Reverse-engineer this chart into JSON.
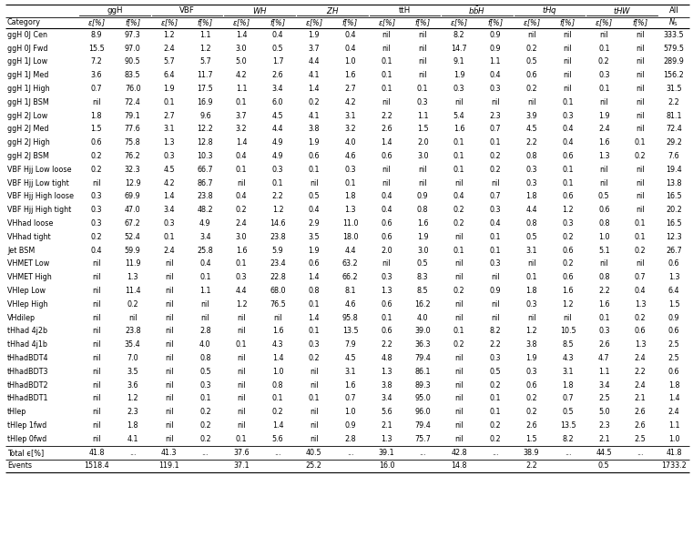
{
  "rows": [
    [
      "ggH 0J Cen",
      "8.9",
      "97.3",
      "1.2",
      "1.1",
      "1.4",
      "0.4",
      "1.9",
      "0.4",
      "nil",
      "nil",
      "8.2",
      "0.9",
      "nil",
      "nil",
      "nil",
      "nil",
      "333.5"
    ],
    [
      "ggH 0J Fwd",
      "15.5",
      "97.0",
      "2.4",
      "1.2",
      "3.0",
      "0.5",
      "3.7",
      "0.4",
      "nil",
      "nil",
      "14.7",
      "0.9",
      "0.2",
      "nil",
      "0.1",
      "nil",
      "579.5"
    ],
    [
      "ggH 1J Low",
      "7.2",
      "90.5",
      "5.7",
      "5.7",
      "5.0",
      "1.7",
      "4.4",
      "1.0",
      "0.1",
      "nil",
      "9.1",
      "1.1",
      "0.5",
      "nil",
      "0.2",
      "nil",
      "289.9"
    ],
    [
      "ggH 1J Med",
      "3.6",
      "83.5",
      "6.4",
      "11.7",
      "4.2",
      "2.6",
      "4.1",
      "1.6",
      "0.1",
      "nil",
      "1.9",
      "0.4",
      "0.6",
      "nil",
      "0.3",
      "nil",
      "156.2"
    ],
    [
      "ggH 1J High",
      "0.7",
      "76.0",
      "1.9",
      "17.5",
      "1.1",
      "3.4",
      "1.4",
      "2.7",
      "0.1",
      "0.1",
      "0.3",
      "0.3",
      "0.2",
      "nil",
      "0.1",
      "nil",
      "31.5"
    ],
    [
      "ggH 1J BSM",
      "nil",
      "72.4",
      "0.1",
      "16.9",
      "0.1",
      "6.0",
      "0.2",
      "4.2",
      "nil",
      "0.3",
      "nil",
      "nil",
      "nil",
      "0.1",
      "nil",
      "nil",
      "2.2"
    ],
    [
      "ggH 2J Low",
      "1.8",
      "79.1",
      "2.7",
      "9.6",
      "3.7",
      "4.5",
      "4.1",
      "3.1",
      "2.2",
      "1.1",
      "5.4",
      "2.3",
      "3.9",
      "0.3",
      "1.9",
      "nil",
      "81.1"
    ],
    [
      "ggH 2J Med",
      "1.5",
      "77.6",
      "3.1",
      "12.2",
      "3.2",
      "4.4",
      "3.8",
      "3.2",
      "2.6",
      "1.5",
      "1.6",
      "0.7",
      "4.5",
      "0.4",
      "2.4",
      "nil",
      "72.4"
    ],
    [
      "ggH 2J High",
      "0.6",
      "75.8",
      "1.3",
      "12.8",
      "1.4",
      "4.9",
      "1.9",
      "4.0",
      "1.4",
      "2.0",
      "0.1",
      "0.1",
      "2.2",
      "0.4",
      "1.6",
      "0.1",
      "29.2"
    ],
    [
      "ggH 2J BSM",
      "0.2",
      "76.2",
      "0.3",
      "10.3",
      "0.4",
      "4.9",
      "0.6",
      "4.6",
      "0.6",
      "3.0",
      "0.1",
      "0.2",
      "0.8",
      "0.6",
      "1.3",
      "0.2",
      "7.6"
    ],
    [
      "VBF Hjj Low loose",
      "0.2",
      "32.3",
      "4.5",
      "66.7",
      "0.1",
      "0.3",
      "0.1",
      "0.3",
      "nil",
      "nil",
      "0.1",
      "0.2",
      "0.3",
      "0.1",
      "nil",
      "nil",
      "19.4"
    ],
    [
      "VBF Hjj Low tight",
      "nil",
      "12.9",
      "4.2",
      "86.7",
      "nil",
      "0.1",
      "nil",
      "0.1",
      "nil",
      "nil",
      "nil",
      "nil",
      "0.3",
      "0.1",
      "nil",
      "nil",
      "13.8"
    ],
    [
      "VBF Hjj High loose",
      "0.3",
      "69.9",
      "1.4",
      "23.8",
      "0.4",
      "2.2",
      "0.5",
      "1.8",
      "0.4",
      "0.9",
      "0.4",
      "0.7",
      "1.8",
      "0.6",
      "0.5",
      "nil",
      "16.5"
    ],
    [
      "VBF Hjj High tight",
      "0.3",
      "47.0",
      "3.4",
      "48.2",
      "0.2",
      "1.2",
      "0.4",
      "1.3",
      "0.4",
      "0.8",
      "0.2",
      "0.3",
      "4.4",
      "1.2",
      "0.6",
      "nil",
      "20.2"
    ],
    [
      "VHhad loose",
      "0.3",
      "67.2",
      "0.3",
      "4.9",
      "2.4",
      "14.6",
      "2.9",
      "11.0",
      "0.6",
      "1.6",
      "0.2",
      "0.4",
      "0.8",
      "0.3",
      "0.8",
      "0.1",
      "16.5"
    ],
    [
      "VHhad tight",
      "0.2",
      "52.4",
      "0.1",
      "3.4",
      "3.0",
      "23.8",
      "3.5",
      "18.0",
      "0.6",
      "1.9",
      "nil",
      "0.1",
      "0.5",
      "0.2",
      "1.0",
      "0.1",
      "12.3"
    ],
    [
      "Jet BSM",
      "0.4",
      "59.9",
      "2.4",
      "25.8",
      "1.6",
      "5.9",
      "1.9",
      "4.4",
      "2.0",
      "3.0",
      "0.1",
      "0.1",
      "3.1",
      "0.6",
      "5.1",
      "0.2",
      "26.7"
    ],
    [
      "VHMET Low",
      "nil",
      "11.9",
      "nil",
      "0.4",
      "0.1",
      "23.4",
      "0.6",
      "63.2",
      "nil",
      "0.5",
      "nil",
      "0.3",
      "nil",
      "0.2",
      "nil",
      "nil",
      "0.6"
    ],
    [
      "VHMET High",
      "nil",
      "1.3",
      "nil",
      "0.1",
      "0.3",
      "22.8",
      "1.4",
      "66.2",
      "0.3",
      "8.3",
      "nil",
      "nil",
      "0.1",
      "0.6",
      "0.8",
      "0.7",
      "1.3"
    ],
    [
      "VHlep Low",
      "nil",
      "11.4",
      "nil",
      "1.1",
      "4.4",
      "68.0",
      "0.8",
      "8.1",
      "1.3",
      "8.5",
      "0.2",
      "0.9",
      "1.8",
      "1.6",
      "2.2",
      "0.4",
      "6.4"
    ],
    [
      "VHlep High",
      "nil",
      "0.2",
      "nil",
      "nil",
      "1.2",
      "76.5",
      "0.1",
      "4.6",
      "0.6",
      "16.2",
      "nil",
      "nil",
      "0.3",
      "1.2",
      "1.6",
      "1.3",
      "1.5"
    ],
    [
      "VHdilep",
      "nil",
      "nil",
      "nil",
      "nil",
      "nil",
      "nil",
      "1.4",
      "95.8",
      "0.1",
      "4.0",
      "nil",
      "nil",
      "nil",
      "nil",
      "0.1",
      "0.2",
      "0.9"
    ],
    [
      "tHhad 4j2b",
      "nil",
      "23.8",
      "nil",
      "2.8",
      "nil",
      "1.6",
      "0.1",
      "13.5",
      "0.6",
      "39.0",
      "0.1",
      "8.2",
      "1.2",
      "10.5",
      "0.3",
      "0.6",
      "0.6"
    ],
    [
      "tHhad 4j1b",
      "nil",
      "35.4",
      "nil",
      "4.0",
      "0.1",
      "4.3",
      "0.3",
      "7.9",
      "2.2",
      "36.3",
      "0.2",
      "2.2",
      "3.8",
      "8.5",
      "2.6",
      "1.3",
      "2.5"
    ],
    [
      "tHhadBDT4",
      "nil",
      "7.0",
      "nil",
      "0.8",
      "nil",
      "1.4",
      "0.2",
      "4.5",
      "4.8",
      "79.4",
      "nil",
      "0.3",
      "1.9",
      "4.3",
      "4.7",
      "2.4",
      "2.5"
    ],
    [
      "tHhadBDT3",
      "nil",
      "3.5",
      "nil",
      "0.5",
      "nil",
      "1.0",
      "nil",
      "3.1",
      "1.3",
      "86.1",
      "nil",
      "0.5",
      "0.3",
      "3.1",
      "1.1",
      "2.2",
      "0.6"
    ],
    [
      "tHhadBDT2",
      "nil",
      "3.6",
      "nil",
      "0.3",
      "nil",
      "0.8",
      "nil",
      "1.6",
      "3.8",
      "89.3",
      "nil",
      "0.2",
      "0.6",
      "1.8",
      "3.4",
      "2.4",
      "1.8"
    ],
    [
      "tHhadBDT1",
      "nil",
      "1.2",
      "nil",
      "0.1",
      "nil",
      "0.1",
      "0.1",
      "0.7",
      "3.4",
      "95.0",
      "nil",
      "0.1",
      "0.2",
      "0.7",
      "2.5",
      "2.1",
      "1.4"
    ],
    [
      "tHlep",
      "nil",
      "2.3",
      "nil",
      "0.2",
      "nil",
      "0.2",
      "nil",
      "1.0",
      "5.6",
      "96.0",
      "nil",
      "0.1",
      "0.2",
      "0.5",
      "5.0",
      "2.6",
      "2.4"
    ],
    [
      "tHlep 1fwd",
      "nil",
      "1.8",
      "nil",
      "0.2",
      "nil",
      "1.4",
      "nil",
      "0.9",
      "2.1",
      "79.4",
      "nil",
      "0.2",
      "2.6",
      "13.5",
      "2.3",
      "2.6",
      "1.1"
    ],
    [
      "tHlep 0fwd",
      "nil",
      "4.1",
      "nil",
      "0.2",
      "0.1",
      "5.6",
      "nil",
      "2.8",
      "1.3",
      "75.7",
      "nil",
      "0.2",
      "1.5",
      "8.2",
      "2.1",
      "2.5",
      "1.0"
    ],
    [
      "Total ϵ[%]",
      "41.8",
      "...",
      "41.3",
      "...",
      "37.6",
      "...",
      "40.5",
      "...",
      "39.1",
      "...",
      "42.8",
      "...",
      "38.9",
      "...",
      "44.5",
      "...",
      "41.8"
    ],
    [
      "Events",
      "1518.4",
      "",
      "119.1",
      "",
      "37.1",
      "",
      "25.2",
      "",
      "16.0",
      "",
      "14.8",
      "",
      "2.2",
      "",
      "0.5",
      "",
      "1733.2"
    ]
  ],
  "background_color": "#ffffff"
}
